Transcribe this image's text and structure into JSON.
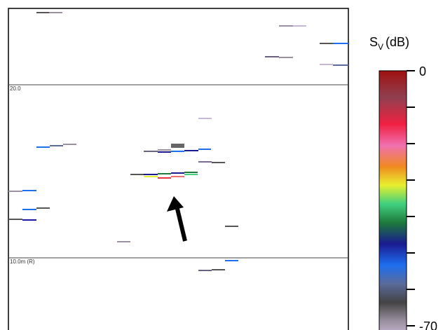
{
  "echogram": {
    "depth_labels": [
      "20.0",
      "10.0m (R)"
    ]
  },
  "colorbar": {
    "label": {
      "main": "S",
      "sub": "V",
      "unit": "(dB)"
    },
    "lim": [
      0,
      -70
    ],
    "ticks": [
      0,
      -10,
      -20,
      -30,
      -40,
      -50,
      -60,
      -70
    ]
  }
}
